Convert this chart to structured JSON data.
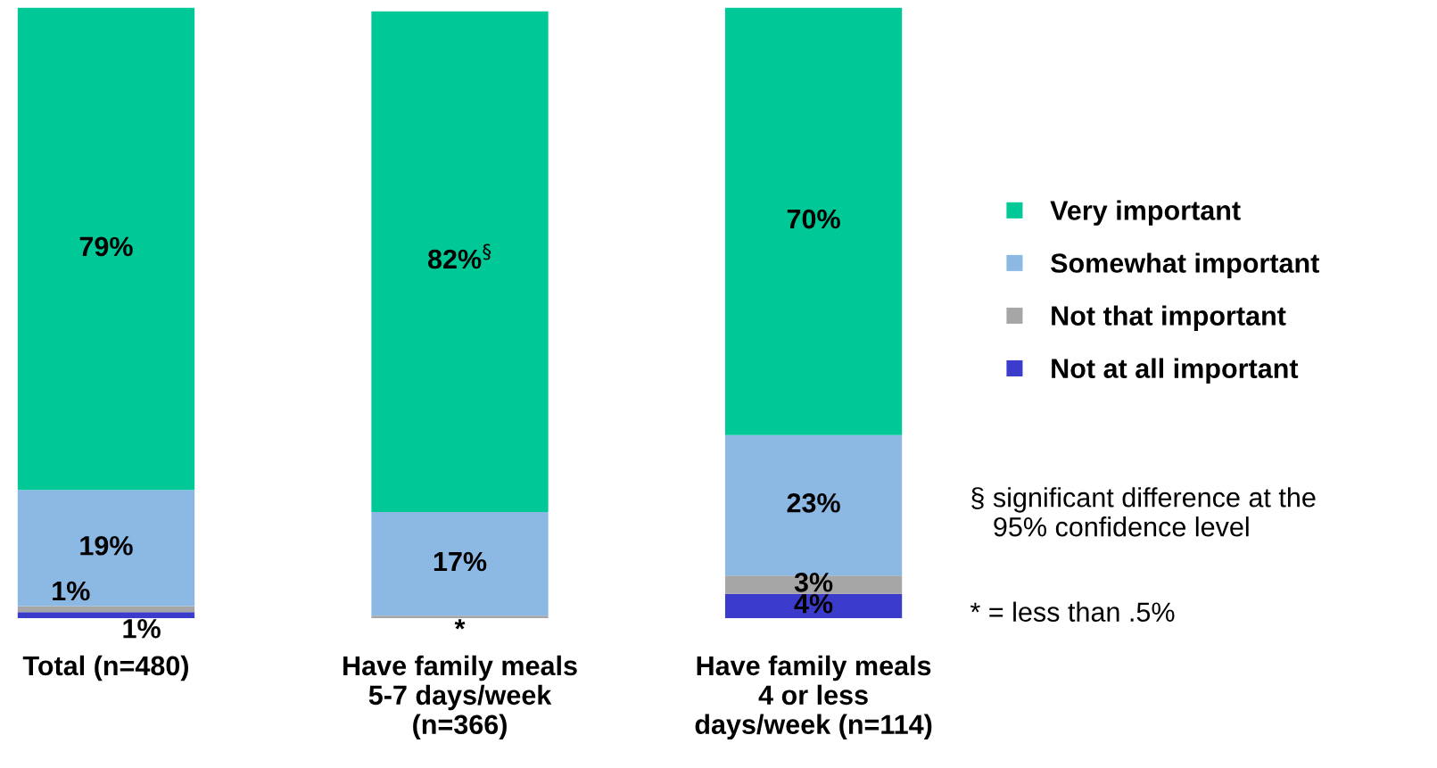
{
  "chart_data": {
    "type": "bar",
    "stacked": true,
    "categories": [
      "Total (n=480)",
      "Have family meals\n5-7 days/week\n(n=366)",
      "Have family meals\n4 or less\ndays/week (n=114)"
    ],
    "series": [
      {
        "name": "Not at all important",
        "color": "#3c3ccc",
        "values": [
          1,
          null,
          4
        ],
        "value_labels": [
          "1%",
          null,
          "4%"
        ]
      },
      {
        "name": "Not that important",
        "color": "#a6a6a6",
        "values": [
          1,
          0.4,
          3
        ],
        "value_labels": [
          "1%",
          "*",
          "3%"
        ]
      },
      {
        "name": "Somewhat important",
        "color": "#8cb8e4",
        "values": [
          19,
          17,
          23
        ],
        "value_labels": [
          "19%",
          "17%",
          "23%"
        ]
      },
      {
        "name": "Very important",
        "color": "#00c896",
        "values": [
          79,
          82,
          70
        ],
        "value_labels": [
          "79%",
          "82%$^{§}$",
          "70%"
        ]
      }
    ],
    "legend": "right",
    "annotations": [
      "§ significant difference at the\n   95% confidence level",
      "* = less than .5%"
    ]
  }
}
